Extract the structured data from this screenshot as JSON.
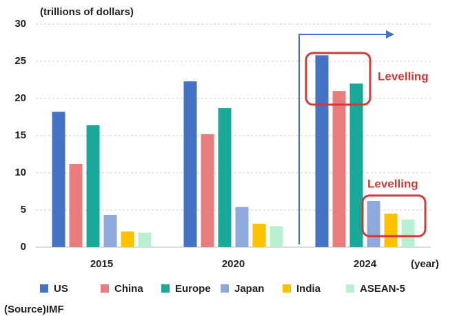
{
  "chart_data": {
    "type": "bar",
    "y_label": "(trillions of dollars)",
    "x_label": "(year)",
    "source": "(Source)IMF",
    "annotations": [
      "Levelling",
      "Levelling"
    ],
    "categories": [
      "2015",
      "2020",
      "2024"
    ],
    "series": [
      {
        "name": "US",
        "color": "#4472c4",
        "values": [
          18.2,
          22.3,
          25.8
        ]
      },
      {
        "name": "China",
        "color": "#e97c7c",
        "values": [
          11.2,
          15.2,
          21.0
        ]
      },
      {
        "name": "Europe",
        "color": "#1aa89a",
        "values": [
          16.4,
          18.7,
          22.0
        ]
      },
      {
        "name": "Japan",
        "color": "#8ea9db",
        "values": [
          4.35,
          5.4,
          6.2
        ]
      },
      {
        "name": "India",
        "color": "#ffc000",
        "values": [
          2.1,
          3.15,
          4.5
        ]
      },
      {
        "name": "ASEAN-5",
        "color": "#b8f0d0",
        "values": [
          1.95,
          2.8,
          3.7
        ]
      }
    ],
    "ylim": [
      0,
      30
    ],
    "yticks": [
      0,
      5,
      10,
      15,
      20,
      25,
      30
    ],
    "grid": true
  }
}
